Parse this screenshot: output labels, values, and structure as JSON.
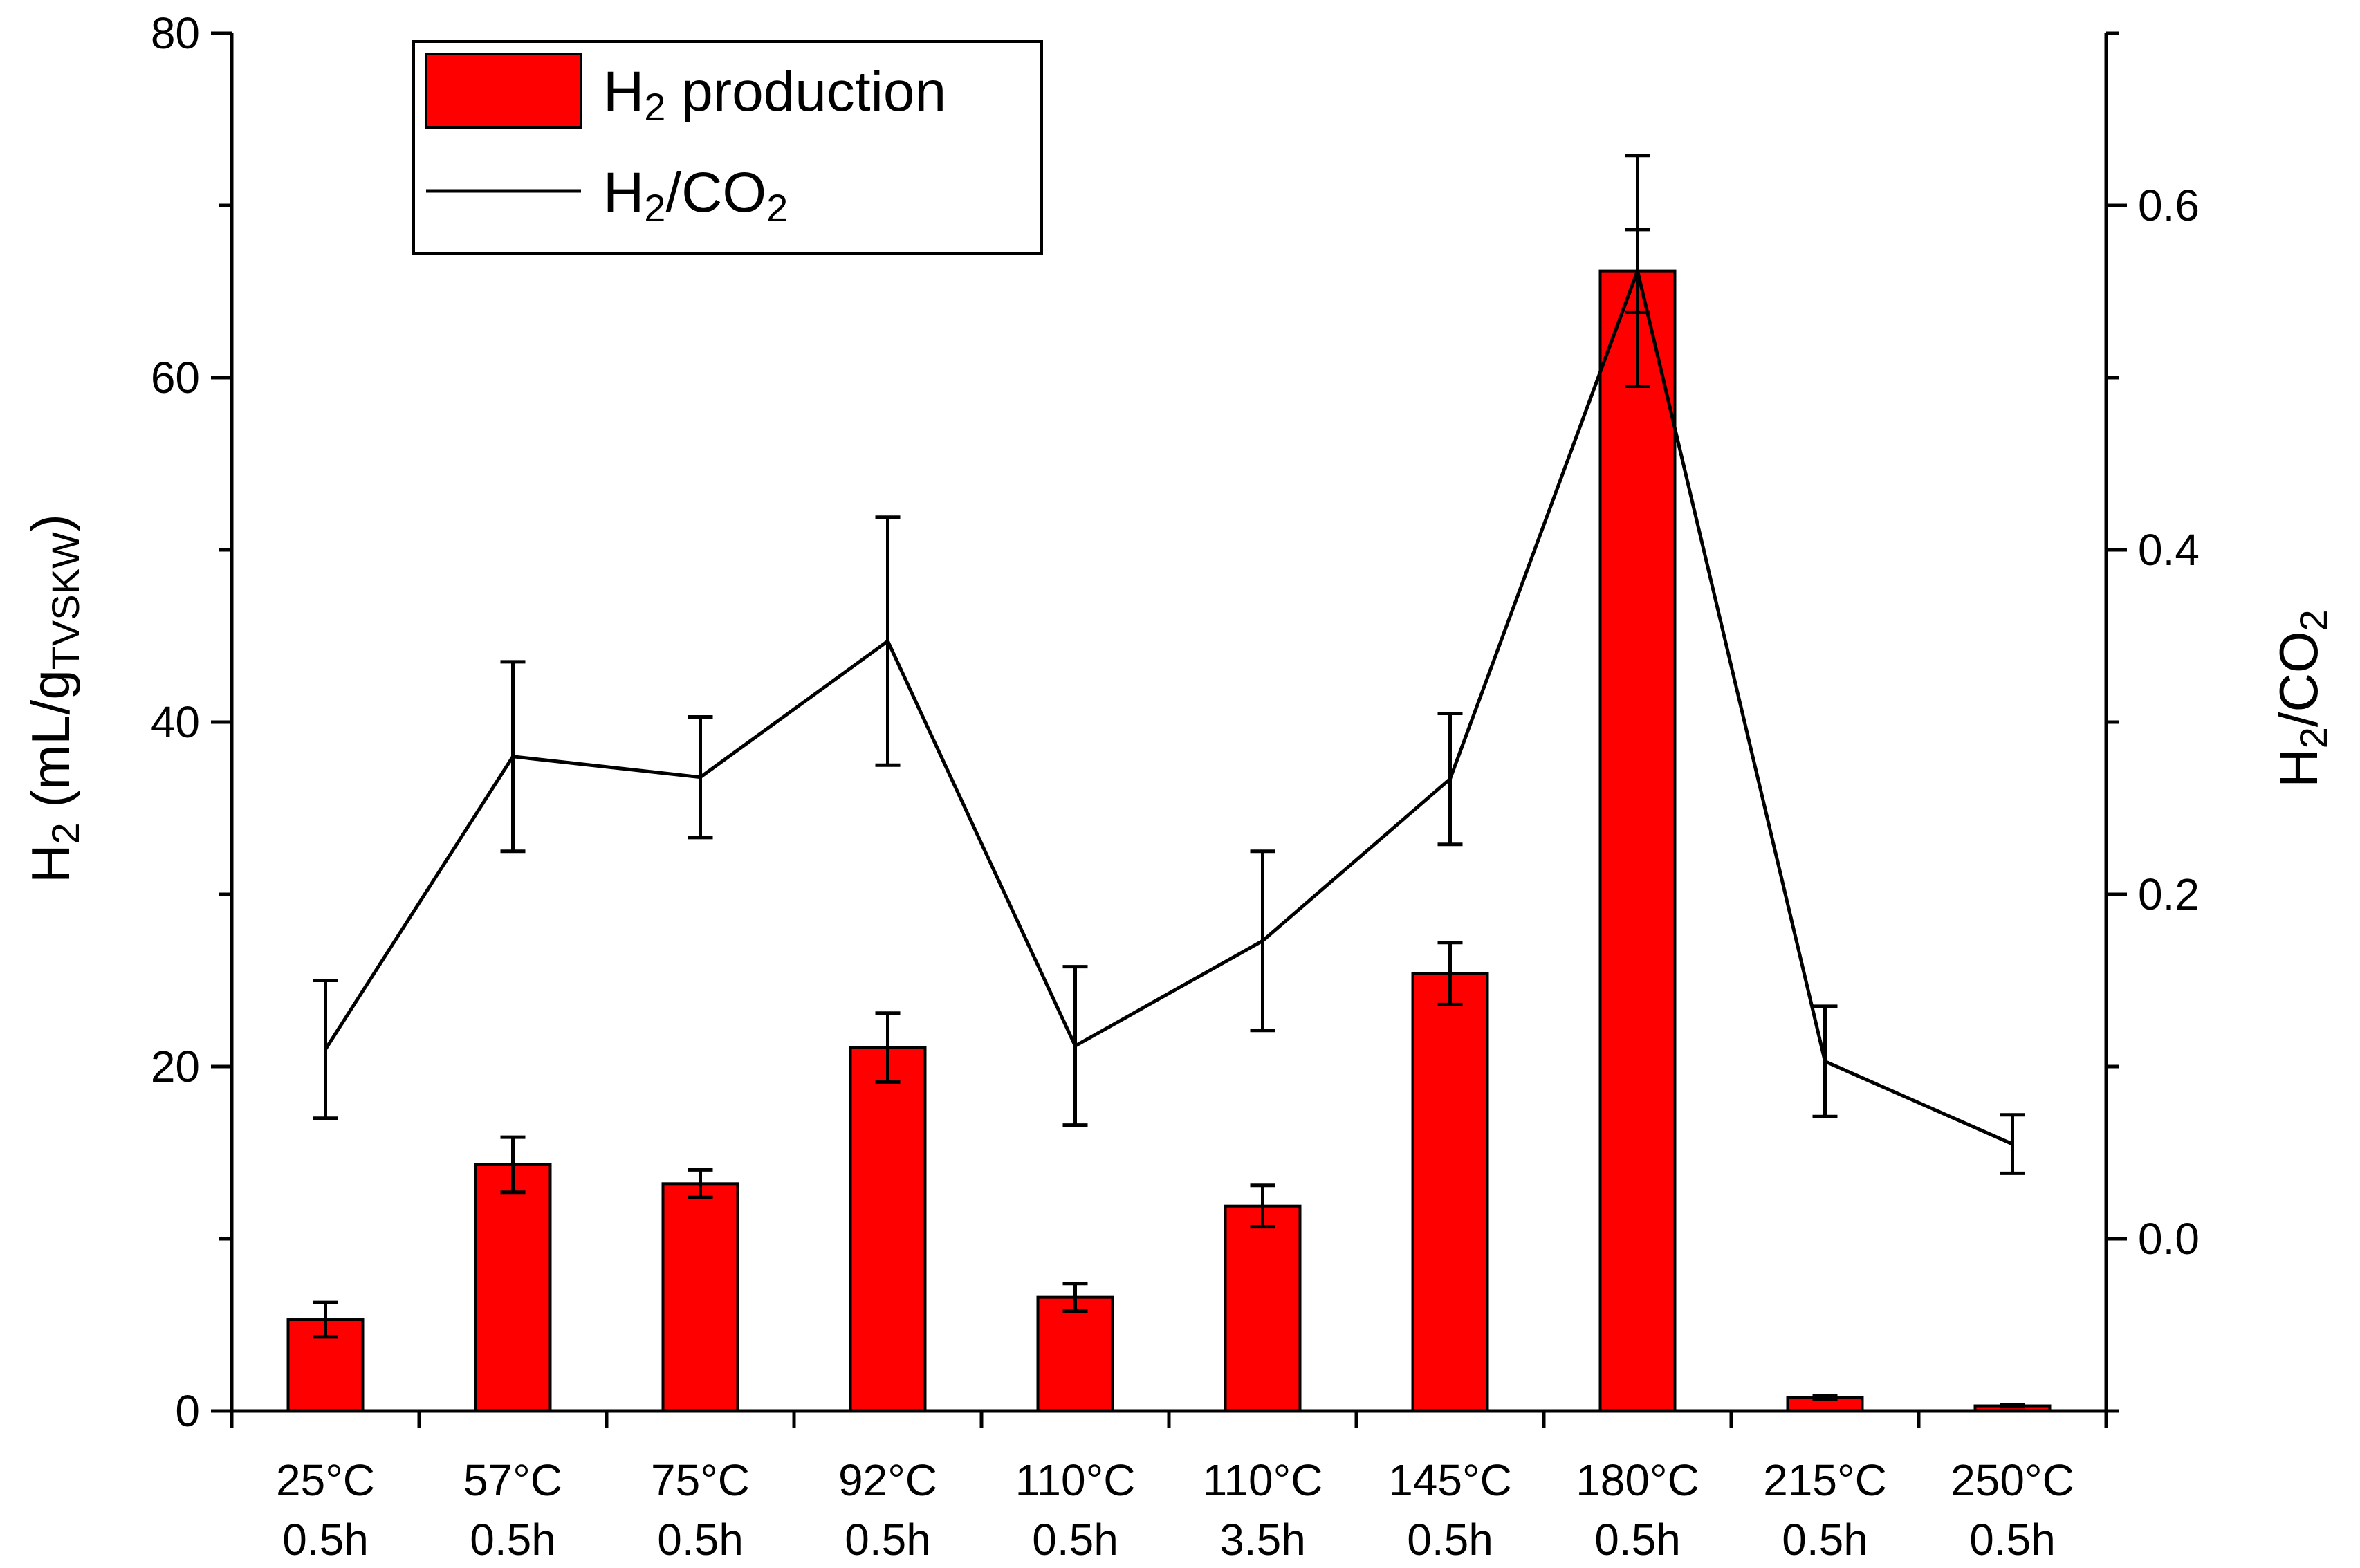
{
  "chart_data": {
    "type": "bar+line",
    "title": "",
    "categories": [
      [
        "25°C",
        "0.5h"
      ],
      [
        "57°C",
        "0.5h"
      ],
      [
        "75°C",
        "0.5h"
      ],
      [
        "92°C",
        "0.5h"
      ],
      [
        "110°C",
        "0.5h"
      ],
      [
        "110°C",
        "3.5h"
      ],
      [
        "145°C",
        "0.5h"
      ],
      [
        "180°C",
        "0.5h"
      ],
      [
        "215°C",
        "0.5h"
      ],
      [
        "250°C",
        "0.5h"
      ]
    ],
    "series": [
      {
        "name": "H2 production",
        "kind": "bar",
        "axis": "left",
        "color": "#ff0000",
        "values": [
          5.3,
          14.3,
          13.2,
          21.1,
          6.6,
          11.9,
          25.4,
          66.2,
          0.8,
          0.3
        ],
        "errors": [
          1.0,
          1.6,
          0.8,
          2.0,
          0.8,
          1.2,
          1.8,
          2.4,
          0.1,
          0.05
        ]
      },
      {
        "name": "H2/CO2",
        "kind": "line",
        "axis": "right",
        "color": "#000000",
        "values": [
          0.11,
          0.28,
          0.268,
          0.347,
          0.112,
          0.173,
          0.267,
          0.562,
          0.103,
          0.055
        ],
        "errors": [
          0.04,
          0.055,
          0.035,
          0.072,
          0.046,
          0.052,
          0.038,
          0.067,
          0.032,
          0.017
        ]
      }
    ],
    "y_left": {
      "label_main": "H",
      "label_sub": "2",
      "label_rest": " (mL/g",
      "label_sub2": "TVSKW",
      "label_end": ")",
      "min": 0,
      "max": 80,
      "major_ticks": [
        0,
        20,
        40,
        60,
        80
      ],
      "minor_step": 10
    },
    "y_right": {
      "label_main": "H",
      "label_sub": "2",
      "label_rest": "/CO",
      "label_sub2": "2",
      "min": -0.1,
      "max": 0.7,
      "major_ticks": [
        0.0,
        0.2,
        0.4,
        0.6
      ],
      "tick_labels": [
        "0.0",
        "0.2",
        "0.4",
        "0.6"
      ]
    },
    "legend": {
      "position": "top-left",
      "items": [
        {
          "main": "H",
          "sub": "2",
          "rest": " production",
          "kind": "bar"
        },
        {
          "main": "H",
          "sub": "2",
          "rest": "/CO",
          "sub2": "2",
          "kind": "line"
        }
      ]
    }
  }
}
